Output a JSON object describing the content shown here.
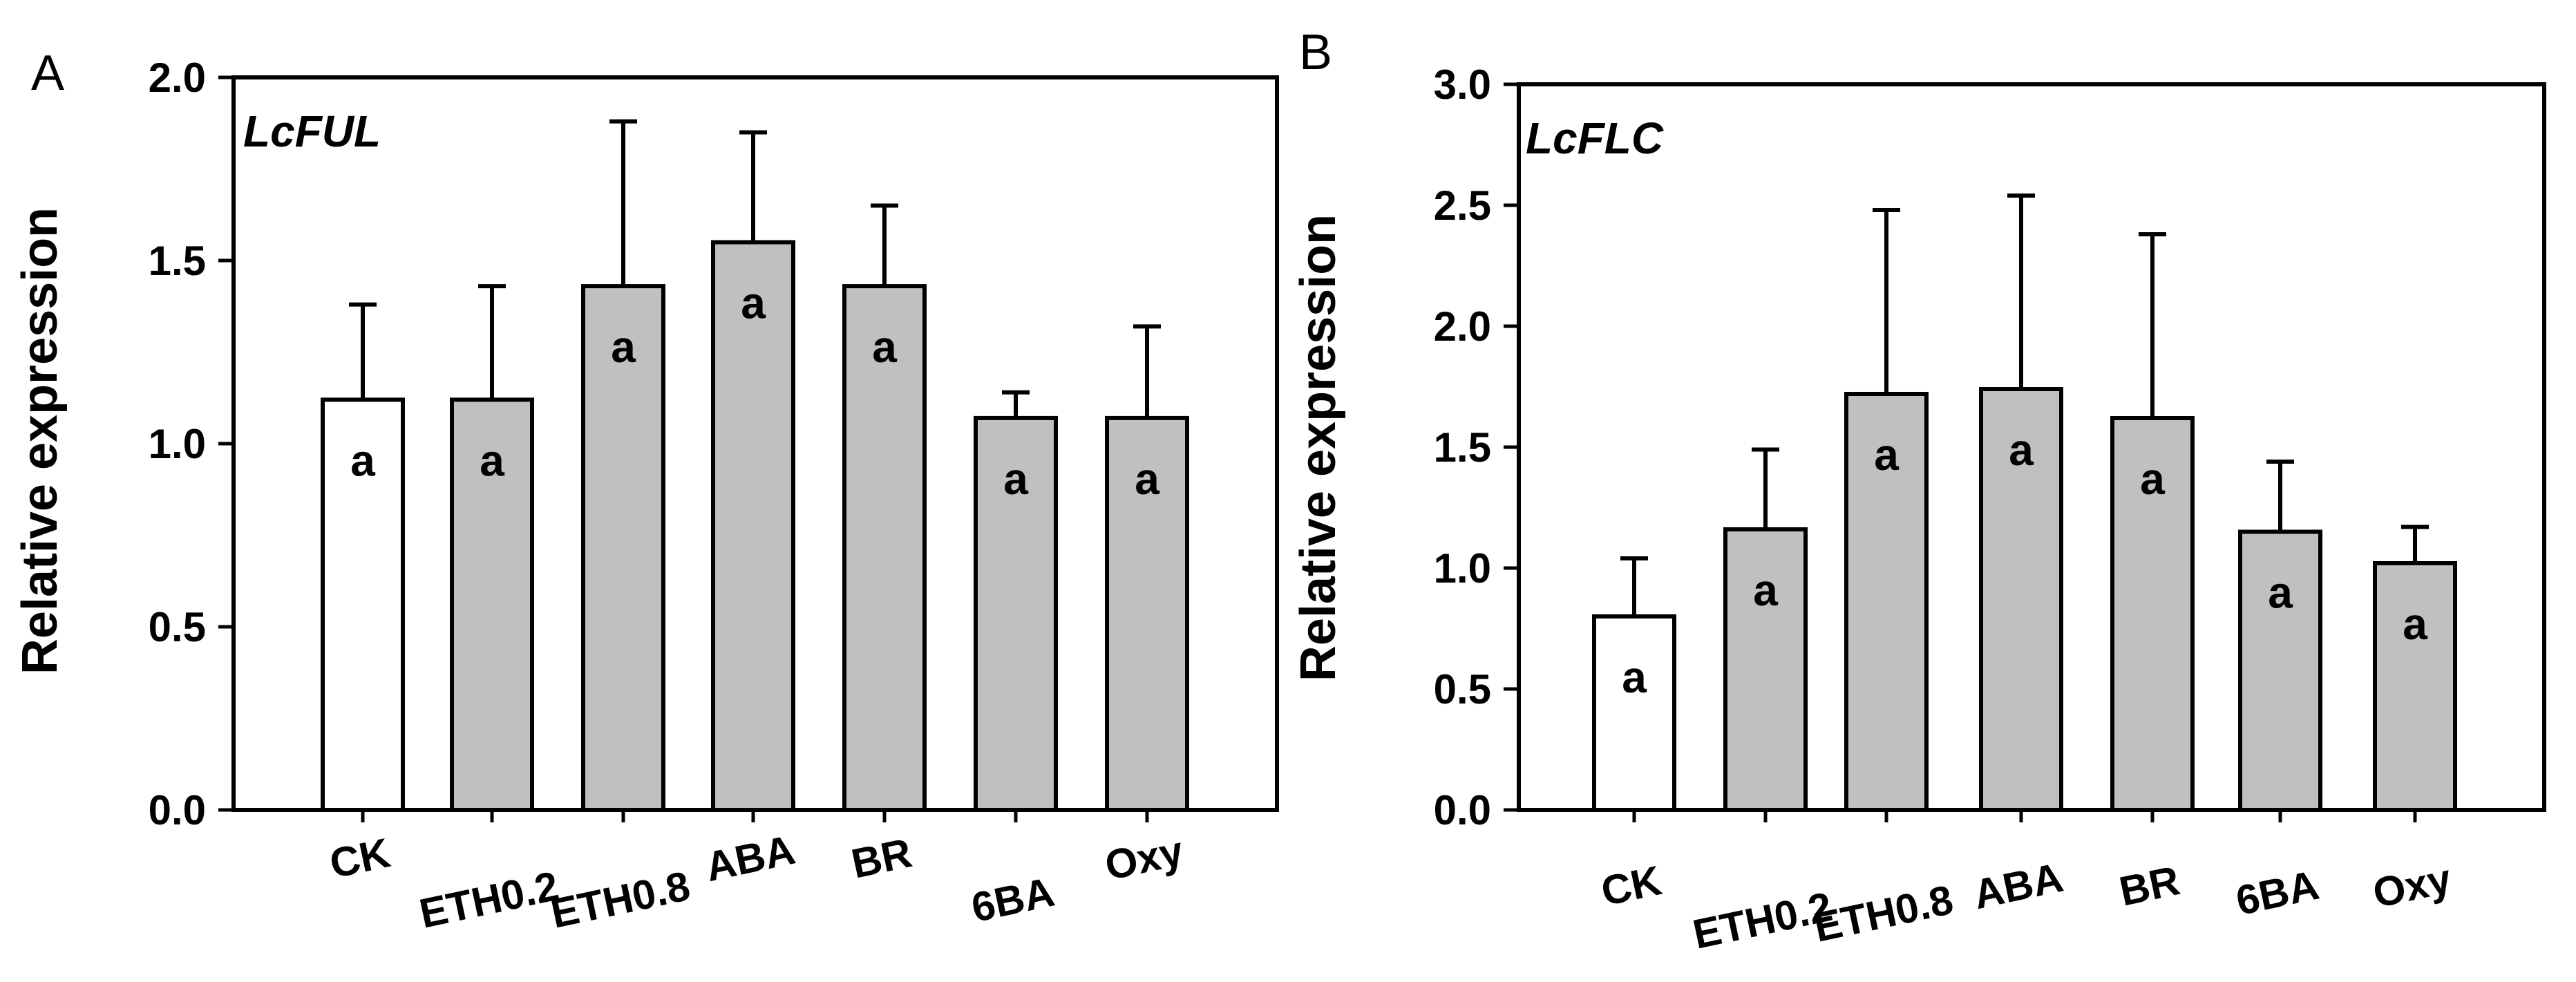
{
  "chart_data": [
    {
      "type": "bar",
      "panel": "A",
      "title": "LcFUL",
      "ylabel": "Relative expression",
      "xlabel": "",
      "ylim": [
        0,
        2.0
      ],
      "yticks": [
        "0.0",
        "0.5",
        "1.0",
        "1.5",
        "2.0"
      ],
      "categories": [
        "CK",
        "ETH0.2",
        "ETH0.8",
        "ABA",
        "BR",
        "6BA",
        "Oxy"
      ],
      "values": [
        1.12,
        1.12,
        1.43,
        1.55,
        1.43,
        1.07,
        1.07
      ],
      "errors": [
        0.26,
        0.31,
        0.45,
        0.3,
        0.22,
        0.07,
        0.25
      ],
      "labels": [
        "a",
        "a",
        "a",
        "a",
        "a",
        "a",
        "a"
      ],
      "colors": [
        "#ffffff",
        "#c0c0c0",
        "#c0c0c0",
        "#c0c0c0",
        "#c0c0c0",
        "#c0c0c0",
        "#c0c0c0"
      ]
    },
    {
      "type": "bar",
      "panel": "B",
      "title": "LcFLC",
      "ylabel": "Relative expression",
      "xlabel": "",
      "ylim": [
        0,
        3.0
      ],
      "yticks": [
        "0.0",
        "0.5",
        "1.0",
        "1.5",
        "2.0",
        "2.5",
        "3.0"
      ],
      "categories": [
        "CK",
        "ETH0.2",
        "ETH0.8",
        "ABA",
        "BR",
        "6BA",
        "Oxy"
      ],
      "values": [
        0.8,
        1.16,
        1.72,
        1.74,
        1.62,
        1.15,
        1.02
      ],
      "errors": [
        0.24,
        0.33,
        0.76,
        0.8,
        0.76,
        0.29,
        0.15
      ],
      "labels": [
        "a",
        "a",
        "a",
        "a",
        "a",
        "a",
        "a"
      ],
      "colors": [
        "#ffffff",
        "#c0c0c0",
        "#c0c0c0",
        "#c0c0c0",
        "#c0c0c0",
        "#c0c0c0",
        "#c0c0c0"
      ]
    }
  ]
}
